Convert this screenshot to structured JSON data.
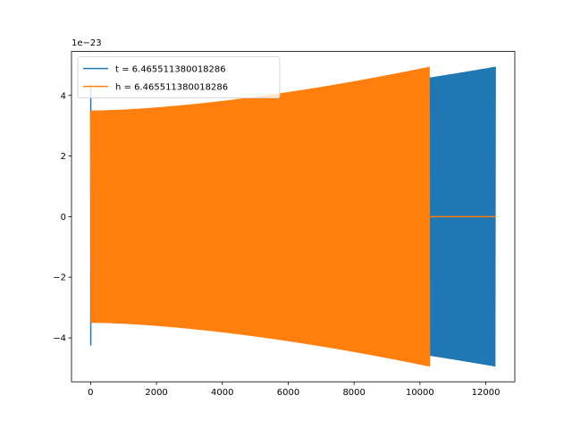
{
  "chart_data": {
    "type": "line",
    "title": "",
    "xlabel": "",
    "ylabel": "",
    "y_offset_label": "1e−23",
    "xlim": [
      -580,
      12880
    ],
    "ylim": [
      -5.45,
      5.45
    ],
    "x_ticks": [
      0,
      2000,
      4000,
      6000,
      8000,
      10000,
      12000
    ],
    "x_tick_labels": [
      "0",
      "2000",
      "4000",
      "6000",
      "8000",
      "10000",
      "12000"
    ],
    "y_ticks": [
      -4,
      -2,
      0,
      2,
      4
    ],
    "y_tick_labels": [
      "−4",
      "−2",
      "0",
      "2",
      "4"
    ],
    "grid": false,
    "legend_position": "upper-left",
    "series": [
      {
        "name": "t = 6.465511380018286",
        "color": "#1f77b4",
        "x_range": [
          0,
          12300
        ],
        "envelope_start": 3.5,
        "envelope_end": 4.95,
        "initial_spike": [
          4.3,
          -4.25
        ],
        "description": "dense oscillation"
      },
      {
        "name": "h = 6.465511380018286",
        "color": "#ff7f0e",
        "x_range": [
          0,
          10300
        ],
        "envelope_start": 3.5,
        "envelope_end": 4.95,
        "flat_after": [
          10300,
          12300
        ],
        "flat_value": 0,
        "description": "dense oscillation"
      }
    ]
  }
}
